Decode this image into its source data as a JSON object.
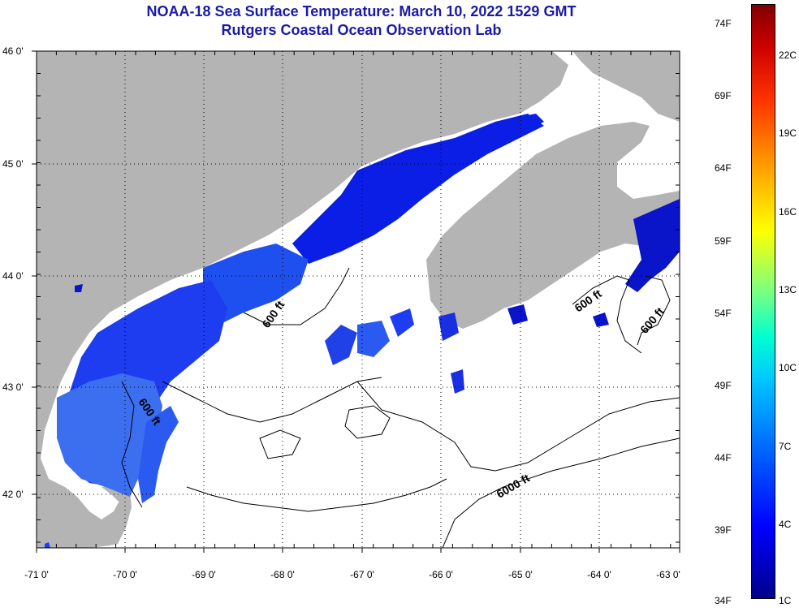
{
  "header": {
    "title": "NOAA-18 Sea Surface Temperature:  March 10, 2022 1529 GMT",
    "subtitle": "Rutgers Coastal Ocean Observation Lab"
  },
  "map": {
    "lon_labels": [
      "-71 0'",
      "-70 0'",
      "-69 0'",
      "-68 0'",
      "-67 0'",
      "-66 0'",
      "-65 0'",
      "-64 0'",
      "-63 0'"
    ],
    "lat_labels": [
      "46 0'",
      "45 0'",
      "44 0'",
      "43 0'",
      "42 0'"
    ],
    "contour_labels": [
      "600 ft",
      "600 ft",
      "600 ft",
      "600 ft",
      "6000 ft"
    ],
    "colors": {
      "land": "#b4b4b4",
      "ocean_no_data": "#ffffff",
      "sst_cold": "#0a1ee6",
      "sst_mid": "#1e50f0",
      "sst_warm": "#3c6ef0",
      "contour": "#000000"
    }
  },
  "colorbar": {
    "fahrenheit": [
      "74F",
      "69F",
      "64F",
      "59F",
      "54F",
      "49F",
      "44F",
      "39F",
      "34F"
    ],
    "celsius": [
      "22C",
      "19C",
      "16C",
      "13C",
      "10C",
      "7C",
      "4C",
      "1C"
    ]
  }
}
